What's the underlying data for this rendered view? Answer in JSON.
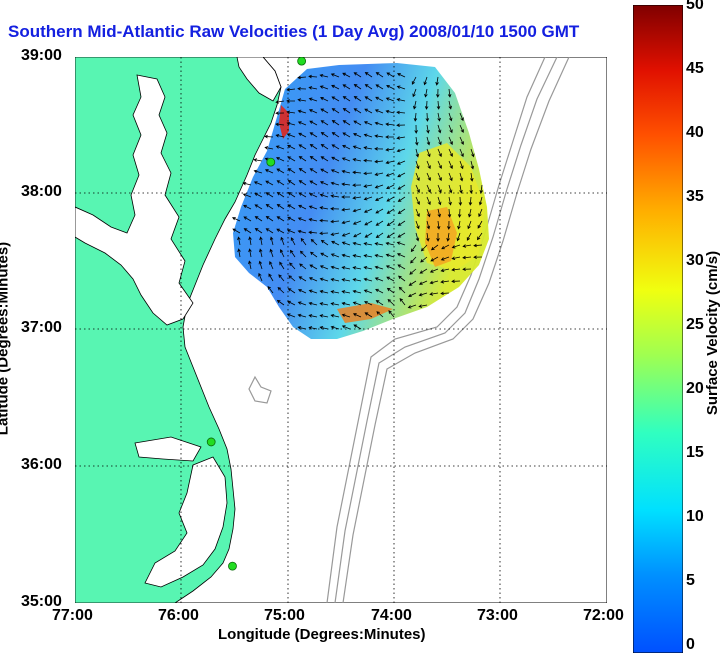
{
  "title": "Southern Mid-Atlantic Raw Velocities (1 Day Avg) 2008/01/10 1500 GMT",
  "x_axis": {
    "label": "Longitude (Degrees:Minutes)",
    "ticks": [
      "77:00",
      "76:00",
      "75:00",
      "74:00",
      "73:00",
      "72:00"
    ]
  },
  "y_axis": {
    "label": "Latitude (Degrees:Minutes)",
    "ticks": [
      "39:00",
      "38:00",
      "37:00",
      "36:00",
      "35:00"
    ]
  },
  "colorbar": {
    "label": "Surface Velocity (cm/s)",
    "ticks": [
      "50",
      "45",
      "40",
      "35",
      "30",
      "25",
      "20",
      "15",
      "10",
      "5",
      "0"
    ],
    "range": [
      0,
      50
    ]
  },
  "map_extent": {
    "lon": [
      -77,
      -72
    ],
    "lat": [
      35,
      39
    ]
  },
  "colors": {
    "land": "#58f5b2",
    "ocean": "#ffffff",
    "title": "#1420e0",
    "station": "#22dd22",
    "bathymetry": "#999999"
  },
  "stations": [
    {
      "lon": -74.87,
      "lat": 38.97
    },
    {
      "lon": -75.16,
      "lat": 38.23
    },
    {
      "lon": -75.72,
      "lat": 36.18
    },
    {
      "lon": -75.52,
      "lat": 35.27
    }
  ],
  "icons": [
    "station-marker-icon",
    "velocity-arrow-icon"
  ]
}
